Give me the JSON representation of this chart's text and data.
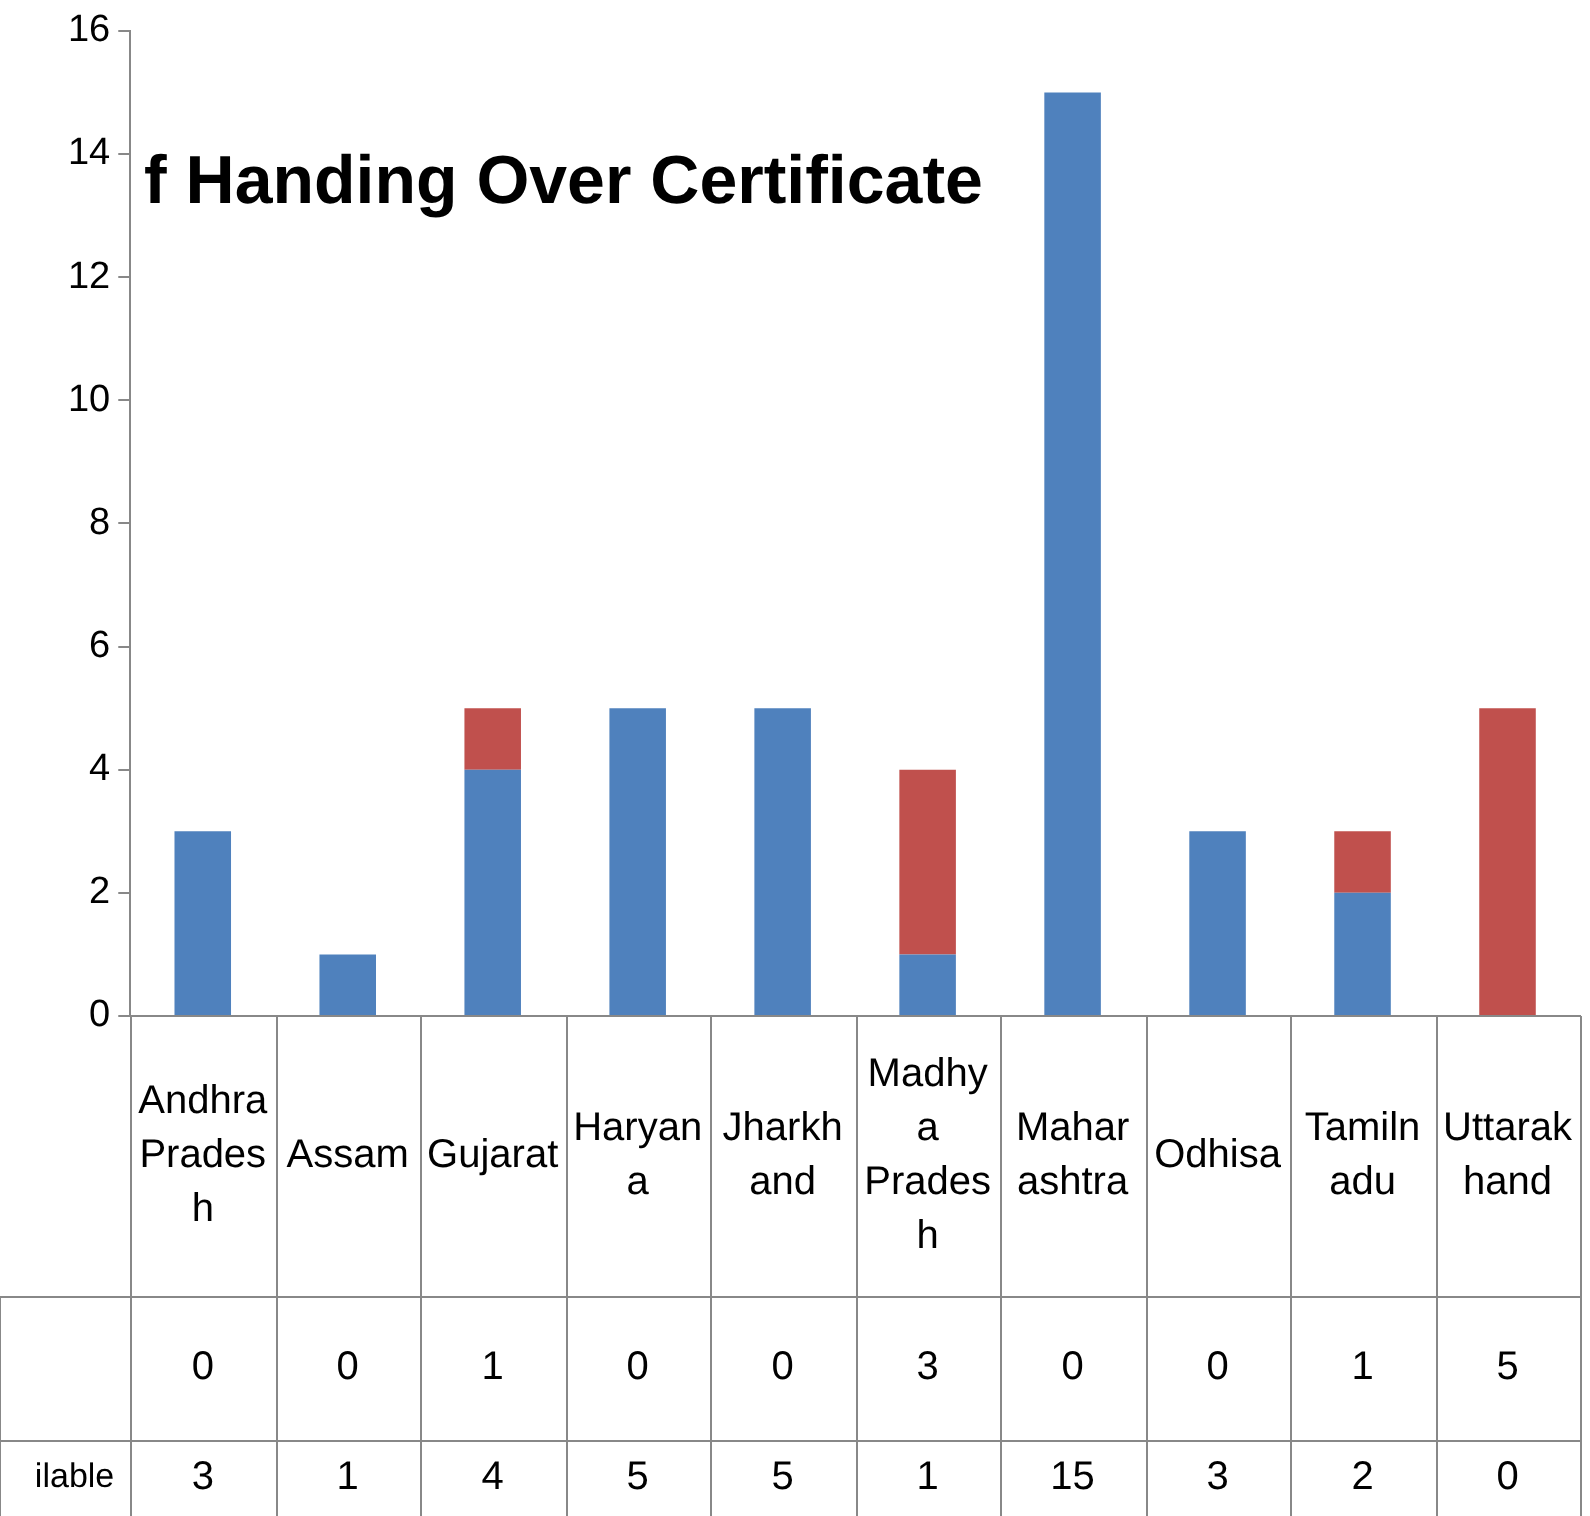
{
  "chart_data": {
    "type": "bar",
    "title": "f Handing Over Certificate",
    "stacked": true,
    "grid": false,
    "legend": false,
    "data_labels": true,
    "categories": [
      "Andhra Pradesh",
      "Assam",
      "Gujarat",
      "Haryana",
      "Jharkhand",
      "Madhya Pradesh",
      "Maharashtra",
      "Odhisa",
      "Tamilnadu",
      "Uttarakhand"
    ],
    "ylim": [
      0,
      16
    ],
    "yticks": [
      0,
      2,
      4,
      6,
      8,
      10,
      12,
      14,
      16
    ],
    "series": [
      {
        "name": "ilable",
        "color": "#4f81bd",
        "values": [
          3,
          1,
          4,
          5,
          5,
          1,
          15,
          3,
          2,
          0
        ]
      },
      {
        "color": "#c0504d",
        "values": [
          0,
          0,
          1,
          0,
          0,
          3,
          0,
          0,
          1,
          5
        ]
      }
    ]
  }
}
